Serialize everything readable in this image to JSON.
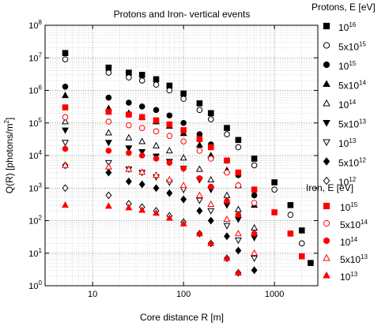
{
  "chart_data": {
    "type": "scatter",
    "title": "Protons and Iron- vertical events",
    "xlabel": "Core distance R [m]",
    "ylabel": "Q(R) [photons/m²]",
    "xscale": "log",
    "yscale": "log",
    "xlim": [
      3,
      3000
    ],
    "ylim": [
      1,
      100000000
    ],
    "x_ticks": [
      "10",
      "100",
      "1000"
    ],
    "y_ticks": [
      "10^0",
      "10^1",
      "10^2",
      "10^3",
      "10^4",
      "10^5",
      "10^6",
      "10^7",
      "10^8"
    ],
    "grid": true,
    "legend_placement": "right",
    "legend_groups": [
      {
        "title": "Protons, E [eV]",
        "entries": [
          {
            "label": "10^16",
            "color": "#000000",
            "marker": "square-filled"
          },
          {
            "label": "5x10^15",
            "color": "#000000",
            "marker": "circle-open"
          },
          {
            "label": "10^15",
            "color": "#000000",
            "marker": "circle-filled"
          },
          {
            "label": "5x10^14",
            "color": "#000000",
            "marker": "triangle-up-filled"
          },
          {
            "label": "10^14",
            "color": "#000000",
            "marker": "triangle-up-open"
          },
          {
            "label": "5x10^13",
            "color": "#000000",
            "marker": "triangle-down-filled"
          },
          {
            "label": "10^13",
            "color": "#000000",
            "marker": "triangle-down-open"
          },
          {
            "label": "5x10^12",
            "color": "#000000",
            "marker": "diamond-filled"
          },
          {
            "label": "10^12",
            "color": "#000000",
            "marker": "diamond-open"
          }
        ]
      },
      {
        "title": "Iron, E [eV]",
        "entries": [
          {
            "label": "10^15",
            "color": "#ff0000",
            "marker": "square-filled"
          },
          {
            "label": "5x10^14",
            "color": "#ff0000",
            "marker": "circle-open"
          },
          {
            "label": "10^14",
            "color": "#ff0000",
            "marker": "circle-filled"
          },
          {
            "label": "5x10^13",
            "color": "#ff0000",
            "marker": "triangle-up-open"
          },
          {
            "label": "10^13",
            "color": "#ff0000",
            "marker": "triangle-up-filled"
          }
        ]
      }
    ],
    "series": [
      {
        "group": "Protons",
        "energy": "10^16",
        "color": "#000000",
        "marker": "square-filled",
        "points": [
          [
            5,
            14000000
          ],
          [
            15,
            5000000
          ],
          [
            25,
            3500000
          ],
          [
            35,
            3000000
          ],
          [
            50,
            2200000
          ],
          [
            70,
            1400000
          ],
          [
            100,
            800000
          ],
          [
            150,
            400000
          ],
          [
            200,
            200000
          ],
          [
            300,
            70000
          ],
          [
            400,
            30000
          ],
          [
            600,
            8000
          ],
          [
            1000,
            1500
          ],
          [
            1500,
            300
          ],
          [
            2000,
            50
          ],
          [
            2500,
            5
          ]
        ]
      },
      {
        "group": "Protons",
        "energy": "5x10^15",
        "color": "#000000",
        "marker": "circle-open",
        "points": [
          [
            5,
            9000000
          ],
          [
            15,
            3500000
          ],
          [
            25,
            2500000
          ],
          [
            35,
            2000000
          ],
          [
            50,
            1500000
          ],
          [
            70,
            1000000
          ],
          [
            100,
            550000
          ],
          [
            150,
            250000
          ],
          [
            200,
            130000
          ],
          [
            300,
            45000
          ],
          [
            400,
            18000
          ],
          [
            600,
            5000
          ],
          [
            1000,
            900
          ],
          [
            1500,
            150
          ],
          [
            2000,
            20
          ]
        ]
      },
      {
        "group": "Protons",
        "energy": "10^15",
        "color": "#000000",
        "marker": "circle-filled",
        "points": [
          [
            5,
            1300000
          ],
          [
            15,
            600000
          ],
          [
            25,
            420000
          ],
          [
            35,
            320000
          ],
          [
            50,
            250000
          ],
          [
            70,
            170000
          ],
          [
            100,
            100000
          ],
          [
            150,
            45000
          ],
          [
            200,
            22000
          ],
          [
            300,
            7000
          ],
          [
            400,
            2500
          ],
          [
            600,
            600
          ]
        ]
      },
      {
        "group": "Protons",
        "energy": "5x10^14",
        "color": "#000000",
        "marker": "triangle-up-filled",
        "points": [
          [
            5,
            700000
          ],
          [
            15,
            280000
          ],
          [
            25,
            200000
          ],
          [
            35,
            150000
          ],
          [
            50,
            110000
          ],
          [
            70,
            80000
          ],
          [
            100,
            48000
          ],
          [
            150,
            21000
          ],
          [
            200,
            10000
          ],
          [
            300,
            3500
          ],
          [
            400,
            1200
          ],
          [
            600,
            300
          ]
        ]
      },
      {
        "group": "Protons",
        "energy": "10^14",
        "color": "#000000",
        "marker": "triangle-up-open",
        "points": [
          [
            5,
            110000
          ],
          [
            15,
            50000
          ],
          [
            25,
            35000
          ],
          [
            35,
            27000
          ],
          [
            50,
            20000
          ],
          [
            70,
            14000
          ],
          [
            100,
            8500
          ],
          [
            150,
            3800
          ],
          [
            200,
            1800
          ],
          [
            300,
            600
          ],
          [
            400,
            220
          ],
          [
            600,
            60
          ]
        ]
      },
      {
        "group": "Protons",
        "energy": "5x10^13",
        "color": "#000000",
        "marker": "triangle-down-filled",
        "points": [
          [
            5,
            60000
          ],
          [
            15,
            25000
          ],
          [
            25,
            17000
          ],
          [
            35,
            13000
          ],
          [
            50,
            9500
          ],
          [
            70,
            6500
          ],
          [
            100,
            4000
          ],
          [
            150,
            1800
          ],
          [
            200,
            900
          ],
          [
            300,
            300
          ],
          [
            400,
            110
          ],
          [
            600,
            30
          ]
        ]
      },
      {
        "group": "Protons",
        "energy": "10^13",
        "color": "#000000",
        "marker": "triangle-down-open",
        "points": [
          [
            5,
            25000
          ],
          [
            15,
            6000
          ],
          [
            25,
            3800
          ],
          [
            35,
            3000
          ],
          [
            50,
            2200
          ],
          [
            70,
            1500
          ],
          [
            100,
            900
          ],
          [
            150,
            420
          ],
          [
            200,
            200
          ],
          [
            300,
            70
          ],
          [
            400,
            25
          ],
          [
            600,
            7
          ]
        ]
      },
      {
        "group": "Protons",
        "energy": "5x10^12",
        "color": "#000000",
        "marker": "diamond-filled",
        "points": [
          [
            5,
            5000
          ],
          [
            15,
            3000
          ],
          [
            25,
            1600
          ],
          [
            35,
            1300
          ],
          [
            50,
            1000
          ],
          [
            70,
            700
          ],
          [
            100,
            450
          ],
          [
            150,
            200
          ],
          [
            200,
            100
          ],
          [
            300,
            33
          ],
          [
            400,
            12
          ],
          [
            600,
            3
          ]
        ]
      },
      {
        "group": "Protons",
        "energy": "10^12",
        "color": "#000000",
        "marker": "diamond-open",
        "points": [
          [
            5,
            1000
          ],
          [
            15,
            600
          ],
          [
            25,
            330
          ],
          [
            35,
            260
          ],
          [
            50,
            200
          ],
          [
            70,
            140
          ],
          [
            100,
            90
          ],
          [
            150,
            40
          ],
          [
            200,
            20
          ],
          [
            300,
            7
          ],
          [
            400,
            2.5
          ],
          [
            600,
            0.8
          ]
        ]
      },
      {
        "group": "Iron",
        "energy": "10^15",
        "color": "#ff0000",
        "marker": "square-filled",
        "points": [
          [
            5,
            300000
          ],
          [
            15,
            220000
          ],
          [
            25,
            180000
          ],
          [
            35,
            150000
          ],
          [
            50,
            120000
          ],
          [
            70,
            90000
          ],
          [
            100,
            60000
          ],
          [
            150,
            32000
          ],
          [
            200,
            18000
          ],
          [
            300,
            7000
          ],
          [
            400,
            3000
          ],
          [
            600,
            900
          ],
          [
            1000,
            180
          ],
          [
            1500,
            40
          ],
          [
            2000,
            8
          ]
        ]
      },
      {
        "group": "Iron",
        "energy": "5x10^14",
        "color": "#ff0000",
        "marker": "circle-open",
        "points": [
          [
            5,
            150000
          ],
          [
            15,
            110000
          ],
          [
            25,
            85000
          ],
          [
            35,
            70000
          ],
          [
            50,
            55000
          ],
          [
            70,
            40000
          ],
          [
            100,
            27000
          ],
          [
            150,
            14000
          ],
          [
            200,
            8000
          ],
          [
            300,
            3000
          ],
          [
            400,
            1200
          ],
          [
            600,
            350
          ]
        ]
      },
      {
        "group": "Iron",
        "energy": "10^14",
        "color": "#ff0000",
        "marker": "circle-filled",
        "points": [
          [
            5,
            16000
          ],
          [
            15,
            14000
          ],
          [
            25,
            12000
          ],
          [
            35,
            10000
          ],
          [
            50,
            8000
          ],
          [
            70,
            6000
          ],
          [
            100,
            4000
          ],
          [
            150,
            2000
          ],
          [
            200,
            1100
          ],
          [
            300,
            400
          ],
          [
            400,
            150
          ],
          [
            600,
            40
          ]
        ]
      },
      {
        "group": "Iron",
        "energy": "5x10^13",
        "color": "#ff0000",
        "marker": "triangle-up-open",
        "points": [
          [
            5,
            5000
          ],
          [
            15,
            4500
          ],
          [
            25,
            3800
          ],
          [
            35,
            3100
          ],
          [
            50,
            2500
          ],
          [
            70,
            1800
          ],
          [
            100,
            1200
          ],
          [
            150,
            600
          ],
          [
            200,
            320
          ],
          [
            300,
            110
          ],
          [
            400,
            40
          ],
          [
            600,
            10
          ]
        ]
      },
      {
        "group": "Iron",
        "energy": "10^13",
        "color": "#ff0000",
        "marker": "triangle-up-filled",
        "points": [
          [
            5,
            300
          ],
          [
            15,
            280
          ],
          [
            25,
            250
          ],
          [
            35,
            210
          ],
          [
            50,
            170
          ],
          [
            70,
            120
          ],
          [
            100,
            80
          ],
          [
            150,
            40
          ],
          [
            200,
            20
          ],
          [
            300,
            7
          ],
          [
            400,
            2.5
          ],
          [
            600,
            0.7
          ]
        ]
      }
    ]
  }
}
